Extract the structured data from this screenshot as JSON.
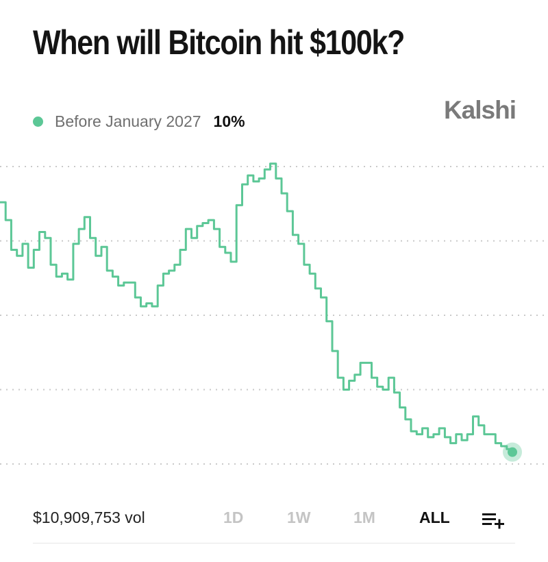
{
  "title": "When will Bitcoin hit $100k?",
  "brand": "Kalshi",
  "legend": {
    "label": "Before January 2027",
    "value": "10%",
    "color": "#5cc796"
  },
  "footer": {
    "volume": "$10,909,753 vol",
    "tabs": [
      "1D",
      "1W",
      "1M",
      "ALL"
    ],
    "active_tab": "ALL",
    "menu_icon": "list-add-icon"
  },
  "chart_data": {
    "type": "line",
    "title": "When will Bitcoin hit $100k?",
    "xlabel": "",
    "ylabel": "",
    "ylim": [
      10,
      20
    ],
    "grid": true,
    "legend_placement": "top-left",
    "series": [
      {
        "name": "Before January 2027",
        "color": "#5cc796",
        "values": [
          18.8,
          18.2,
          17.2,
          17.0,
          17.4,
          16.6,
          17.2,
          17.8,
          17.6,
          16.7,
          16.3,
          16.4,
          16.2,
          17.4,
          17.9,
          18.3,
          17.6,
          17.0,
          17.3,
          16.5,
          16.3,
          16.0,
          16.1,
          16.1,
          15.6,
          15.3,
          15.4,
          15.3,
          16.0,
          16.4,
          16.5,
          16.7,
          17.2,
          17.9,
          17.6,
          18.0,
          18.1,
          18.2,
          17.9,
          17.3,
          17.1,
          16.8,
          18.7,
          19.4,
          19.7,
          19.5,
          19.6,
          19.9,
          20.1,
          19.6,
          19.1,
          18.5,
          17.7,
          17.4,
          16.7,
          16.4,
          15.9,
          15.6,
          14.8,
          13.8,
          12.9,
          12.5,
          12.8,
          13.0,
          13.4,
          13.4,
          12.9,
          12.6,
          12.5,
          12.9,
          12.4,
          11.9,
          11.5,
          11.1,
          11.0,
          11.2,
          10.9,
          11.0,
          11.2,
          10.9,
          10.7,
          11.0,
          10.8,
          11.0,
          11.6,
          11.3,
          11.0,
          11.0,
          10.7,
          10.6,
          10.5,
          10.4
        ]
      }
    ]
  }
}
